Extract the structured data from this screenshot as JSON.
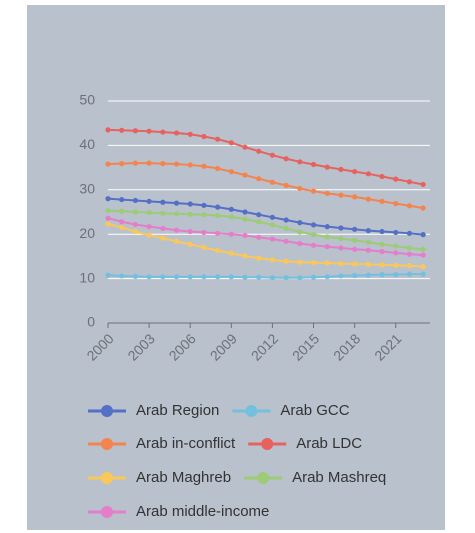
{
  "chart_data": {
    "type": "line",
    "x": [
      2000,
      2001,
      2002,
      2003,
      2004,
      2005,
      2006,
      2007,
      2008,
      2009,
      2010,
      2011,
      2012,
      2013,
      2014,
      2015,
      2016,
      2017,
      2018,
      2019,
      2020,
      2021,
      2022,
      2023
    ],
    "xlim": [
      2000,
      2023.5
    ],
    "xticks": [
      2000,
      2003,
      2006,
      2009,
      2012,
      2015,
      2018,
      2021
    ],
    "ylim": [
      0,
      50
    ],
    "yticks": [
      0,
      10,
      20,
      30,
      40,
      50
    ],
    "grid": true,
    "legend": "bottom",
    "series": [
      {
        "name": "Arab Region",
        "color": "#5470c6",
        "values": [
          28.0,
          27.8,
          27.6,
          27.4,
          27.2,
          27.0,
          26.8,
          26.5,
          26.1,
          25.6,
          25.0,
          24.4,
          23.8,
          23.2,
          22.6,
          22.1,
          21.7,
          21.4,
          21.1,
          20.8,
          20.6,
          20.4,
          20.2,
          19.9
        ]
      },
      {
        "name": "Arab GCC",
        "color": "#73c0de",
        "values": [
          10.8,
          10.6,
          10.5,
          10.4,
          10.4,
          10.4,
          10.4,
          10.4,
          10.4,
          10.4,
          10.3,
          10.3,
          10.2,
          10.2,
          10.2,
          10.3,
          10.4,
          10.6,
          10.7,
          10.8,
          10.9,
          10.9,
          11.0,
          11.0
        ]
      },
      {
        "name": "Arab in-conflict",
        "color": "#f4844f",
        "values": [
          35.8,
          35.9,
          36.0,
          36.0,
          35.9,
          35.8,
          35.6,
          35.3,
          34.8,
          34.1,
          33.3,
          32.5,
          31.7,
          31.0,
          30.3,
          29.7,
          29.2,
          28.8,
          28.4,
          27.9,
          27.4,
          26.9,
          26.4,
          25.9
        ]
      },
      {
        "name": "Arab LDC",
        "color": "#e7625f",
        "values": [
          43.5,
          43.4,
          43.3,
          43.2,
          43.0,
          42.8,
          42.5,
          42.0,
          41.4,
          40.6,
          39.6,
          38.7,
          37.8,
          37.0,
          36.3,
          35.7,
          35.1,
          34.6,
          34.1,
          33.6,
          33.0,
          32.4,
          31.8,
          31.2
        ]
      },
      {
        "name": "Arab Maghreb",
        "color": "#fac858",
        "values": [
          22.3,
          21.5,
          20.6,
          19.8,
          19.1,
          18.4,
          17.7,
          17.0,
          16.3,
          15.7,
          15.1,
          14.6,
          14.2,
          13.9,
          13.7,
          13.6,
          13.5,
          13.4,
          13.3,
          13.2,
          13.1,
          13.0,
          12.9,
          12.7
        ]
      },
      {
        "name": "Arab Mashreq",
        "color": "#9ccc75",
        "values": [
          25.3,
          25.2,
          25.0,
          24.9,
          24.7,
          24.6,
          24.5,
          24.4,
          24.2,
          23.9,
          23.4,
          22.8,
          22.1,
          21.3,
          20.5,
          19.9,
          19.4,
          19.0,
          18.6,
          18.2,
          17.7,
          17.3,
          16.9,
          16.6
        ]
      },
      {
        "name": "Arab middle-income",
        "color": "#e47ecb",
        "values": [
          23.6,
          22.8,
          22.2,
          21.7,
          21.3,
          20.9,
          20.6,
          20.4,
          20.2,
          20.0,
          19.7,
          19.3,
          18.9,
          18.4,
          17.9,
          17.5,
          17.2,
          16.9,
          16.6,
          16.4,
          16.1,
          15.8,
          15.5,
          15.3
        ]
      }
    ]
  }
}
